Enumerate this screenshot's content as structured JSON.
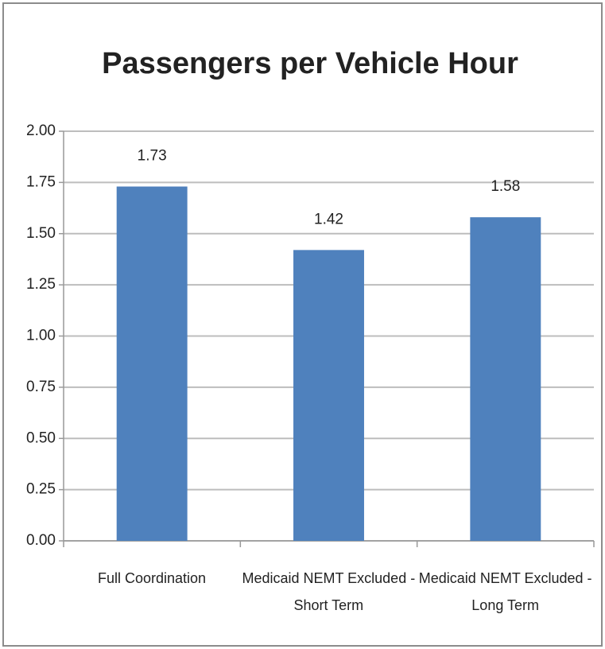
{
  "chart_data": {
    "type": "bar",
    "title": "Passengers per Vehicle Hour",
    "categories": [
      "Full Coordination",
      "Medicaid NEMT Excluded - Short Term",
      "Medicaid NEMT Excluded - Long Term"
    ],
    "values": [
      1.73,
      1.42,
      1.58
    ],
    "color": "#4f81bd",
    "ylim": [
      0,
      2
    ],
    "yticks": [
      {
        "value": 0,
        "label": "0.00"
      },
      0.25,
      {
        "value": 0.5,
        "label": "0.50"
      },
      0.75,
      {
        "value": 1,
        "label": "1.00"
      },
      1.25,
      {
        "value": 1.5,
        "label": "1.50"
      },
      1.75,
      {
        "value": 2,
        "label": "2.00"
      }
    ],
    "grid": true
  }
}
